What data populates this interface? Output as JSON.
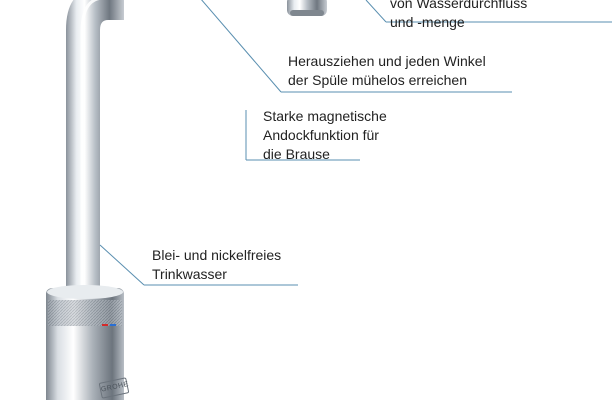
{
  "callouts": {
    "flow": {
      "line1": "von Wasserdurchfluss",
      "line2": "und -menge"
    },
    "pull": {
      "line1": "Herausziehen und jeden Winkel",
      "line2": "der Spüle mühelos erreichen"
    },
    "magnet": {
      "line1": "Starke magnetische",
      "line2": "Andockfunktion für",
      "line3": "die Brause"
    },
    "lead": {
      "line1": "Blei- und nickelfreies",
      "line2": "Trinkwasser"
    }
  },
  "brand": {
    "logo_text": "GROHE"
  },
  "colors": {
    "background": "#ffffff",
    "chrome_light": "#f4f6f8",
    "chrome_dark": "#7d8590",
    "leader_line": "#5a8fb0",
    "text": "#222222",
    "hot": "#d42a2a",
    "cold": "#2a6fd4"
  }
}
